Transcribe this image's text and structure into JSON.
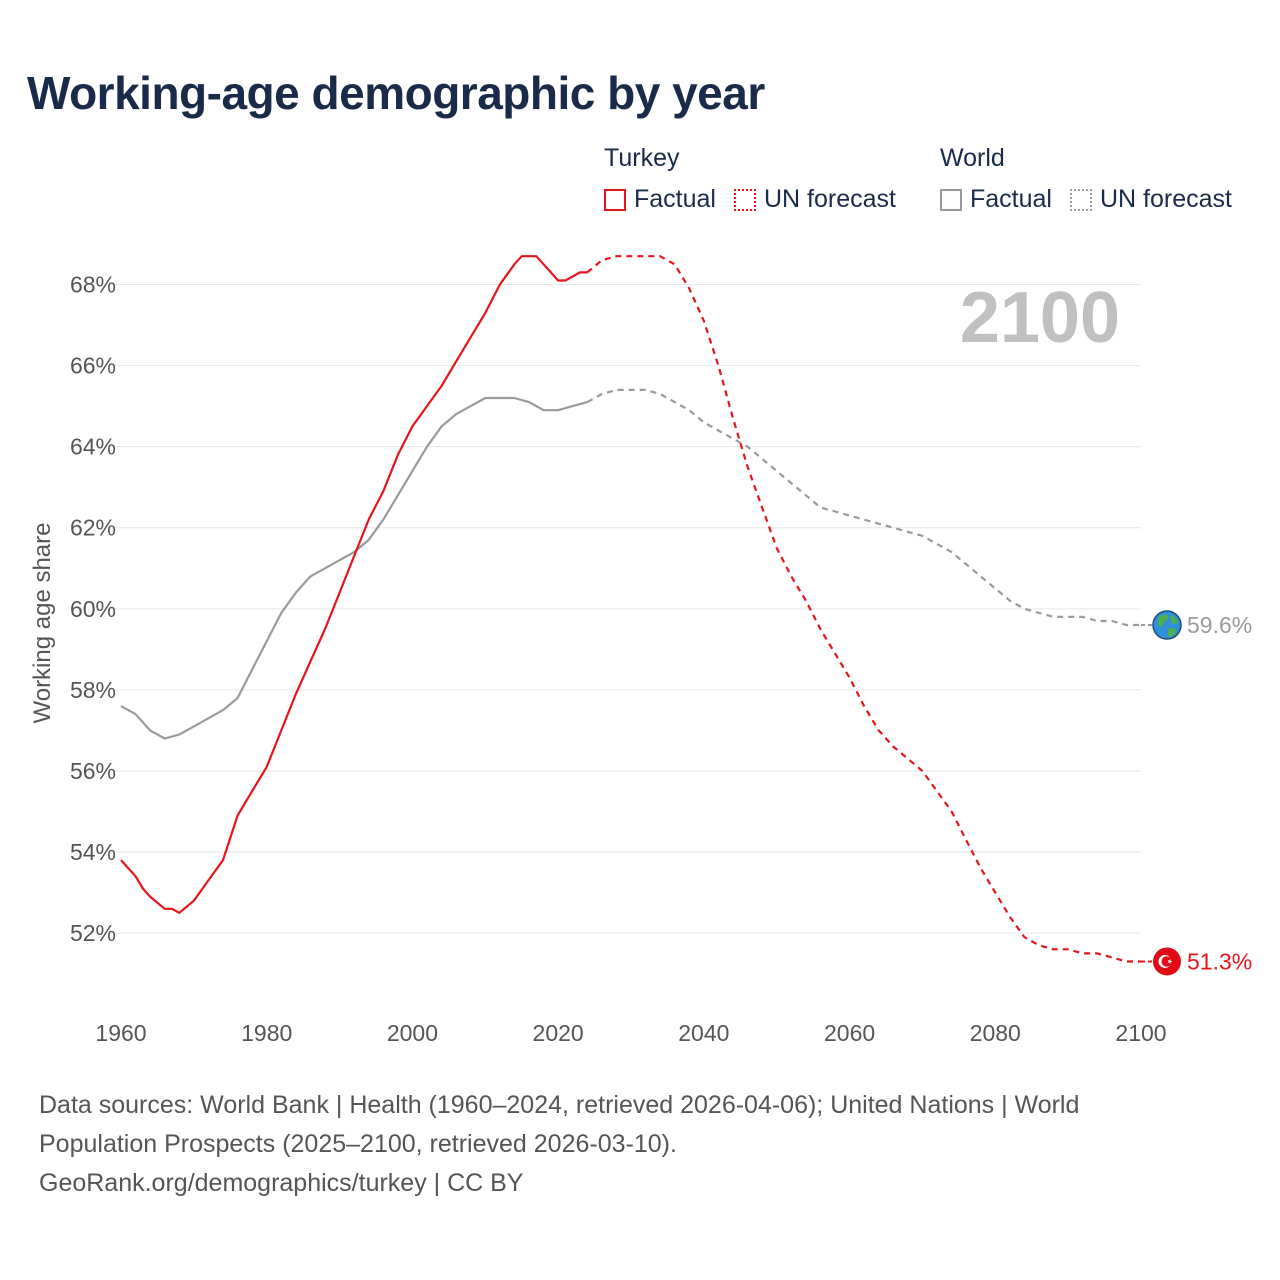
{
  "title": "Working-age demographic by year",
  "legend": {
    "groups": [
      {
        "name": "Turkey",
        "color": "#e8141c",
        "items": [
          {
            "label": "Factual",
            "style": "solid"
          },
          {
            "label": "UN forecast",
            "style": "dotted"
          }
        ]
      },
      {
        "name": "World",
        "color": "#9a9a9a",
        "items": [
          {
            "label": "Factual",
            "style": "solid"
          },
          {
            "label": "UN forecast",
            "style": "dotted"
          }
        ]
      }
    ]
  },
  "sources": {
    "line1": "Data sources: World Bank | Health (1960–2024, retrieved 2026-04-06); United Nations | World",
    "line2": "Population Prospects (2025–2100, retrieved 2026-03-10).",
    "line3": "GeoRank.org/demographics/turkey | CC BY"
  },
  "colors": {
    "turkey": "#e8141c",
    "world": "#9a9a9a",
    "grid": "#e6e6e6",
    "tick": "#555555",
    "year": "#c0c0c0"
  },
  "chart_data": {
    "type": "line",
    "title": "Working-age demographic by year",
    "xlabel": "",
    "ylabel": "Working age share",
    "xlim": [
      1960,
      2100
    ],
    "ylim": [
      50.3,
      69.0
    ],
    "xticks": [
      1960,
      1980,
      2000,
      2020,
      2040,
      2060,
      2080,
      2100
    ],
    "yticks": [
      52,
      54,
      56,
      58,
      60,
      62,
      64,
      66,
      68
    ],
    "tick_suffix": "%",
    "grid": true,
    "current_year": "2100",
    "series": [
      {
        "name": "Turkey",
        "key": "turkey",
        "end_label": "51.3%",
        "end_icon": "turkey-flag-icon",
        "factual": {
          "x": [
            1960,
            1962,
            1963,
            1964,
            1966,
            1967,
            1968,
            1970,
            1972,
            1974,
            1976,
            1978,
            1980,
            1982,
            1984,
            1986,
            1988,
            1990,
            1992,
            1994,
            1996,
            1998,
            2000,
            2002,
            2004,
            2006,
            2008,
            2010,
            2012,
            2014,
            2015,
            2016,
            2017,
            2018,
            2019,
            2020,
            2021,
            2022,
            2023,
            2024
          ],
          "y": [
            53.8,
            53.4,
            53.1,
            52.9,
            52.6,
            52.6,
            52.5,
            52.8,
            53.3,
            53.8,
            54.9,
            55.5,
            56.1,
            57.0,
            57.9,
            58.7,
            59.5,
            60.4,
            61.3,
            62.2,
            62.9,
            63.8,
            64.5,
            65.0,
            65.5,
            66.1,
            66.7,
            67.3,
            68.0,
            68.5,
            68.7,
            68.7,
            68.7,
            68.5,
            68.3,
            68.1,
            68.1,
            68.2,
            68.3,
            68.3
          ]
        },
        "forecast": {
          "x": [
            2024,
            2026,
            2028,
            2030,
            2032,
            2034,
            2036,
            2038,
            2040,
            2042,
            2044,
            2046,
            2048,
            2050,
            2052,
            2054,
            2056,
            2058,
            2060,
            2062,
            2064,
            2066,
            2068,
            2070,
            2072,
            2074,
            2076,
            2078,
            2080,
            2082,
            2084,
            2086,
            2088,
            2090,
            2092,
            2094,
            2096,
            2098,
            2100
          ],
          "y": [
            68.3,
            68.6,
            68.7,
            68.7,
            68.7,
            68.7,
            68.5,
            67.9,
            67.1,
            66.0,
            64.7,
            63.5,
            62.5,
            61.5,
            60.8,
            60.2,
            59.5,
            58.9,
            58.3,
            57.6,
            57.0,
            56.6,
            56.3,
            56.0,
            55.5,
            55.0,
            54.3,
            53.6,
            53.0,
            52.4,
            51.9,
            51.7,
            51.6,
            51.6,
            51.5,
            51.5,
            51.4,
            51.3,
            51.3
          ]
        }
      },
      {
        "name": "World",
        "key": "world",
        "end_label": "59.6%",
        "end_icon": "globe-icon",
        "factual": {
          "x": [
            1960,
            1962,
            1964,
            1966,
            1968,
            1970,
            1972,
            1974,
            1976,
            1978,
            1980,
            1982,
            1984,
            1986,
            1988,
            1990,
            1992,
            1994,
            1996,
            1998,
            2000,
            2002,
            2004,
            2006,
            2008,
            2010,
            2012,
            2014,
            2016,
            2018,
            2020,
            2022,
            2024
          ],
          "y": [
            57.6,
            57.4,
            57.0,
            56.8,
            56.9,
            57.1,
            57.3,
            57.5,
            57.8,
            58.5,
            59.2,
            59.9,
            60.4,
            60.8,
            61.0,
            61.2,
            61.4,
            61.7,
            62.2,
            62.8,
            63.4,
            64.0,
            64.5,
            64.8,
            65.0,
            65.2,
            65.2,
            65.2,
            65.1,
            64.9,
            64.9,
            65.0,
            65.1
          ]
        },
        "forecast": {
          "x": [
            2024,
            2026,
            2028,
            2030,
            2032,
            2034,
            2036,
            2038,
            2040,
            2042,
            2044,
            2046,
            2048,
            2050,
            2052,
            2054,
            2056,
            2058,
            2060,
            2062,
            2064,
            2066,
            2068,
            2070,
            2072,
            2074,
            2076,
            2078,
            2080,
            2082,
            2084,
            2086,
            2088,
            2090,
            2092,
            2094,
            2096,
            2098,
            2100
          ],
          "y": [
            65.1,
            65.3,
            65.4,
            65.4,
            65.4,
            65.3,
            65.1,
            64.9,
            64.6,
            64.4,
            64.2,
            64.0,
            63.7,
            63.4,
            63.1,
            62.8,
            62.5,
            62.4,
            62.3,
            62.2,
            62.1,
            62.0,
            61.9,
            61.8,
            61.6,
            61.4,
            61.1,
            60.8,
            60.5,
            60.2,
            60.0,
            59.9,
            59.8,
            59.8,
            59.8,
            59.7,
            59.7,
            59.6,
            59.6
          ]
        }
      }
    ]
  }
}
